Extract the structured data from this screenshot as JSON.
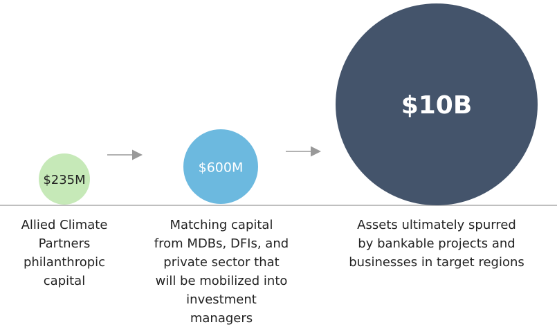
{
  "nodes": [
    {
      "label": "$235M",
      "description": [
        "Allied Climate",
        "Partners",
        "philanthropic",
        "capital"
      ]
    },
    {
      "label": "$600M",
      "description": [
        "Matching capital",
        "from MDBs, DFIs, and",
        "private sector that",
        "will be mobilized into",
        "investment",
        "managers"
      ]
    },
    {
      "label": "$10B",
      "description": [
        "Assets ultimately spurred",
        "by bankable projects and",
        "businesses in target regions"
      ]
    }
  ]
}
